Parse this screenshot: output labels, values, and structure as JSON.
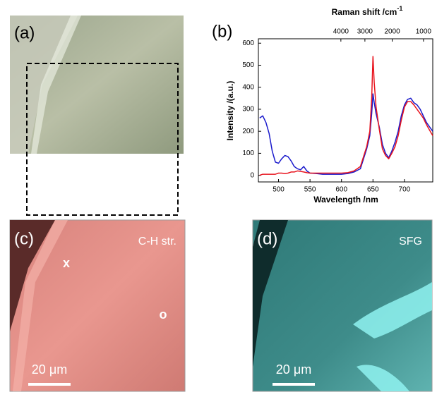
{
  "chart_data": {
    "type": "line",
    "panel_label": "(b)",
    "xlabel": "Wavelength /nm",
    "ylabel": "Intensity /(a.u.)",
    "x2label": "Raman shift /cm",
    "x2label_sup": "-1",
    "x2scale": "reciprocal",
    "x": [
      470,
      475,
      480,
      485,
      490,
      495,
      500,
      505,
      510,
      515,
      520,
      525,
      530,
      535,
      540,
      545,
      550,
      560,
      570,
      580,
      590,
      600,
      610,
      620,
      630,
      640,
      645,
      648,
      650,
      652,
      655,
      660,
      665,
      670,
      675,
      680,
      685,
      690,
      695,
      700,
      705,
      710,
      715,
      720,
      725,
      730,
      735,
      740,
      745
    ],
    "series": [
      {
        "color": "#1a1acc",
        "values": [
          260,
          270,
          240,
          190,
          110,
          60,
          55,
          75,
          90,
          85,
          65,
          40,
          30,
          25,
          40,
          20,
          10,
          8,
          5,
          5,
          5,
          5,
          8,
          15,
          30,
          120,
          180,
          280,
          370,
          330,
          280,
          220,
          140,
          100,
          80,
          110,
          150,
          200,
          270,
          320,
          345,
          350,
          330,
          320,
          300,
          270,
          240,
          220,
          200
        ]
      },
      {
        "color": "#e8141e",
        "values": [
          0,
          5,
          5,
          5,
          5,
          5,
          10,
          10,
          8,
          10,
          15,
          15,
          20,
          18,
          15,
          12,
          10,
          10,
          10,
          10,
          10,
          10,
          12,
          20,
          40,
          130,
          200,
          350,
          540,
          420,
          310,
          210,
          120,
          90,
          75,
          100,
          130,
          180,
          250,
          310,
          335,
          335,
          320,
          300,
          280,
          260,
          230,
          205,
          180
        ]
      }
    ],
    "xlim": [
      468,
      745
    ],
    "xticks": [
      500,
      550,
      600,
      650,
      700
    ],
    "ylim": [
      -30,
      620
    ],
    "yticks": [
      0,
      100,
      200,
      300,
      400,
      500,
      600
    ],
    "x2lim": [
      8674,
      729
    ],
    "x2ticks": [
      4000,
      3000,
      2000,
      1000
    ]
  },
  "panels": [
    {
      "label": "(a)"
    },
    {
      "label": "(c)",
      "channel": "C-H str.",
      "markers": [
        "x",
        "o"
      ],
      "scale_bar": "20 μm"
    },
    {
      "label": "(d)",
      "channel": "SFG",
      "scale_bar": "20 μm"
    }
  ]
}
